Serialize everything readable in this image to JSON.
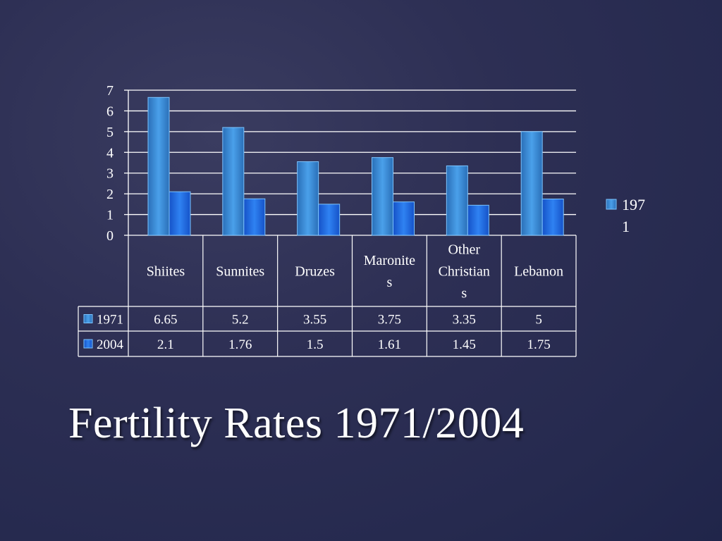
{
  "slide": {
    "title": "Fertility Rates 1971/2004"
  },
  "chart_data": {
    "type": "bar",
    "categories": [
      "Shiites",
      "Sunnites",
      "Druzes",
      "Maronites",
      "Other Christians",
      "Lebanon"
    ],
    "category_lines": [
      [
        "Shiites"
      ],
      [
        "Sunnites"
      ],
      [
        "Druzes"
      ],
      [
        "Maronite",
        "s"
      ],
      [
        "Other",
        "Christian",
        "s"
      ],
      [
        "Lebanon"
      ]
    ],
    "series": [
      {
        "name": "1971",
        "values": [
          6.65,
          5.2,
          3.55,
          3.75,
          3.35,
          5
        ],
        "labels": [
          "6.65",
          "5.2",
          "3.55",
          "3.75",
          "3.35",
          "5"
        ],
        "color": "#3a8fdc"
      },
      {
        "name": "2004",
        "values": [
          2.1,
          1.76,
          1.5,
          1.61,
          1.45,
          1.75
        ],
        "labels": [
          "2.1",
          "1.76",
          "1.5",
          "1.61",
          "1.45",
          "1.75"
        ],
        "color": "#1f6ee6"
      }
    ],
    "ylim": [
      0,
      7
    ],
    "yticks": [
      "0",
      "1",
      "2",
      "3",
      "4",
      "5",
      "6",
      "7"
    ],
    "grid": true,
    "data_table": true,
    "legend": {
      "placement": "right",
      "lines": [
        "197",
        "1"
      ]
    }
  }
}
